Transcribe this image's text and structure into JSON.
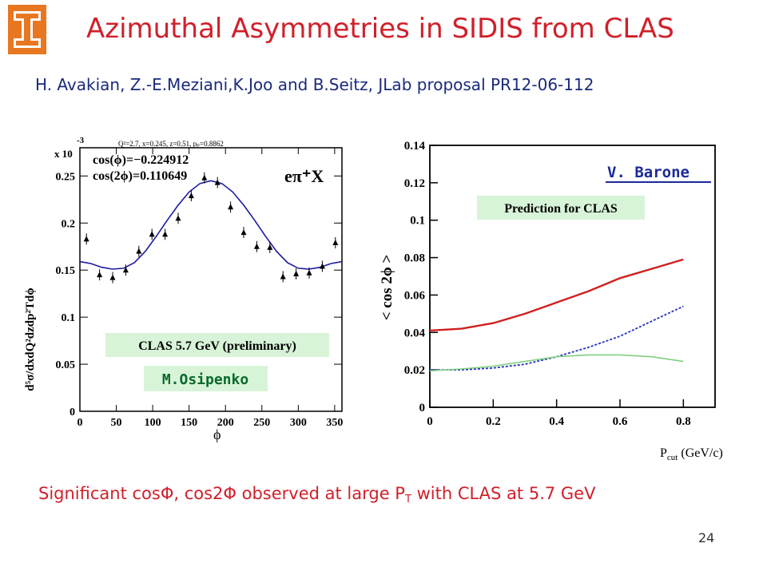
{
  "slide": {
    "title": "Azimuthal Asymmetries in SIDIS from CLAS",
    "authors": "H. Avakian, Z.-E.Meziani,K.Joo and B.Seitz, JLab proposal PR12-06-112",
    "caption_pre": "Significant cosΦ, cos2Φ observed at large P",
    "caption_sub": "T",
    "caption_post": " with CLAS at 5.7 GeV",
    "page_number": "24"
  },
  "left_plot": {
    "exponent": "x 10",
    "exponent_power": "-3",
    "header": "Q²=2.7, x=0.245, z=0.51, pₚ=0.8862",
    "fit_line1": "cos(ϕ)=−0.224912",
    "fit_line2": "cos(2ϕ)=0.110649",
    "reaction": "eπ⁺X",
    "ylabel": "d⁵σ/dxdQ²dzdp²Tdϕ",
    "xlabel": "ϕ",
    "box_label": "CLAS 5.7 GeV (preliminary)",
    "author": "M.Osipenko",
    "colors": {
      "fit": "#1a1aa0",
      "box": "#d8f4d8",
      "author": "#0a6a2a"
    }
  },
  "right_plot": {
    "ylabel": "< cos 2ϕ >",
    "xlabel": "P",
    "xlabel_sub": "cut",
    "xlabel_units": " (GeV/c)",
    "box_label": "Prediction for CLAS",
    "author": "V. Barone",
    "colors": {
      "red": "#d02020",
      "blue": "#2030c0",
      "green": "#80d080",
      "author": "#1a2a9a"
    }
  },
  "chart_data": [
    {
      "type": "scatter",
      "title": "",
      "xlabel": "ϕ",
      "ylabel": "d⁵σ/dxdQ²dzdp²Tdϕ",
      "xlim": [
        0,
        360
      ],
      "ylim": [
        0,
        0.28
      ],
      "xticks": [
        0,
        50,
        100,
        150,
        200,
        250,
        300,
        350
      ],
      "yticks": [
        0,
        0.05,
        0.1,
        0.15,
        0.2,
        0.25
      ],
      "series": [
        {
          "name": "data",
          "x": [
            9,
            27,
            45,
            63,
            81,
            99,
            117,
            135,
            153,
            171,
            189,
            207,
            225,
            243,
            261,
            279,
            297,
            315,
            333,
            351
          ],
          "y": [
            0.183,
            0.145,
            0.142,
            0.15,
            0.17,
            0.188,
            0.188,
            0.205,
            0.229,
            0.248,
            0.243,
            0.217,
            0.19,
            0.175,
            0.174,
            0.143,
            0.146,
            0.147,
            0.154,
            0.179
          ]
        },
        {
          "name": "fit",
          "x": [
            0,
            15,
            30,
            45,
            60,
            75,
            90,
            105,
            120,
            135,
            150,
            165,
            180,
            195,
            210,
            225,
            240,
            255,
            270,
            285,
            300,
            315,
            330,
            345,
            360
          ],
          "y": [
            0.159,
            0.157,
            0.153,
            0.151,
            0.152,
            0.158,
            0.17,
            0.186,
            0.203,
            0.219,
            0.233,
            0.242,
            0.245,
            0.242,
            0.233,
            0.219,
            0.203,
            0.186,
            0.17,
            0.158,
            0.152,
            0.151,
            0.153,
            0.157,
            0.159
          ]
        }
      ]
    },
    {
      "type": "line",
      "title": "",
      "xlabel": "P cut (GeV/c)",
      "ylabel": "< cos 2ϕ >",
      "xlim": [
        0,
        0.9
      ],
      "ylim": [
        0,
        0.14
      ],
      "xticks": [
        0,
        0.2,
        0.4,
        0.6,
        0.8
      ],
      "yticks": [
        0,
        0.02,
        0.04,
        0.06,
        0.08,
        0.1,
        0.12,
        0.14
      ],
      "series": [
        {
          "x": [
            0,
            0.1,
            0.2,
            0.3,
            0.4,
            0.5,
            0.6,
            0.7,
            0.8
          ],
          "y": [
            0.041,
            0.042,
            0.045,
            0.05,
            0.056,
            0.062,
            0.069,
            0.074,
            0.079
          ]
        },
        {
          "x": [
            0,
            0.1,
            0.2,
            0.3,
            0.4,
            0.5,
            0.6,
            0.7,
            0.8
          ],
          "y": [
            0.02,
            0.02,
            0.021,
            0.023,
            0.027,
            0.032,
            0.038,
            0.046,
            0.054
          ]
        },
        {
          "x": [
            0,
            0.1,
            0.2,
            0.3,
            0.4,
            0.5,
            0.6,
            0.7,
            0.8
          ],
          "y": [
            0.0195,
            0.0205,
            0.022,
            0.0245,
            0.027,
            0.028,
            0.028,
            0.027,
            0.0245
          ]
        }
      ]
    }
  ]
}
